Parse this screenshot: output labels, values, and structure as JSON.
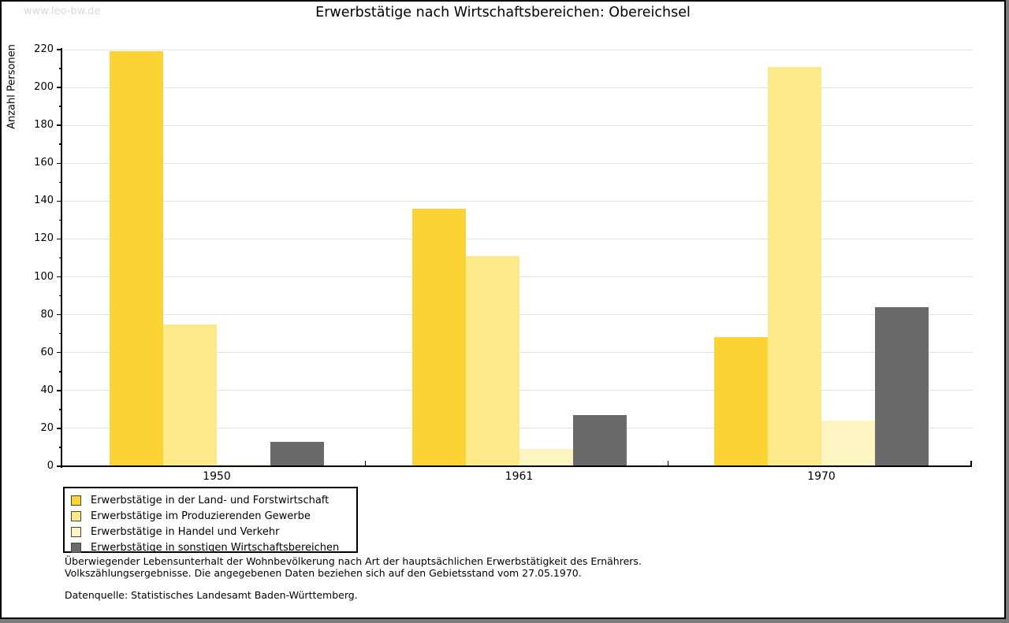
{
  "watermark": "www.leo-bw.de",
  "title": "Erwerbstätige nach Wirtschaftsbereichen: Obereichsel",
  "chart_data": {
    "type": "bar",
    "title": "Erwerbstätige nach Wirtschaftsbereichen: Obereichsel",
    "xlabel": "",
    "ylabel": "Anzahl Personen",
    "ylim": [
      0,
      220
    ],
    "ytick_step": 20,
    "yminor_step": 10,
    "grid": true,
    "legend_position": "bottom-left",
    "categories": [
      "1950",
      "1961",
      "1970"
    ],
    "series": [
      {
        "name": "Erwerbstätige in der Land- und Forstwirtschaft",
        "color": "#fbd335",
        "values": [
          219,
          136,
          68
        ]
      },
      {
        "name": "Erwerbstätige im Produzierenden Gewerbe",
        "color": "#fbe98a",
        "values": [
          75,
          111,
          211
        ]
      },
      {
        "name": "Erwerbstätige in Handel und Verkehr",
        "color": "#fcf5c2",
        "values": [
          1,
          9,
          24
        ]
      },
      {
        "name": "Erwerbstätige in sonstigen Wirtschaftsbereichen",
        "color": "#6a6a6a",
        "values": [
          13,
          27,
          84
        ]
      }
    ]
  },
  "footer": {
    "note_line1": "Überwiegender Lebensunterhalt der Wohnbevölkerung nach Art der hauptsächlichen Erwerbstätigkeit des Ernährers.",
    "note_line2": "Volkszählungsergebnisse. Die angegebenen Daten beziehen sich auf den Gebietsstand vom 27.05.1970.",
    "source": "Datenquelle: Statistisches Landesamt Baden-Württemberg."
  },
  "colors": {
    "grid": "#e2e2e2",
    "axis": "#000000",
    "watermark": "#d9d9d9",
    "background": "#ffffff",
    "frame": "#000000"
  }
}
